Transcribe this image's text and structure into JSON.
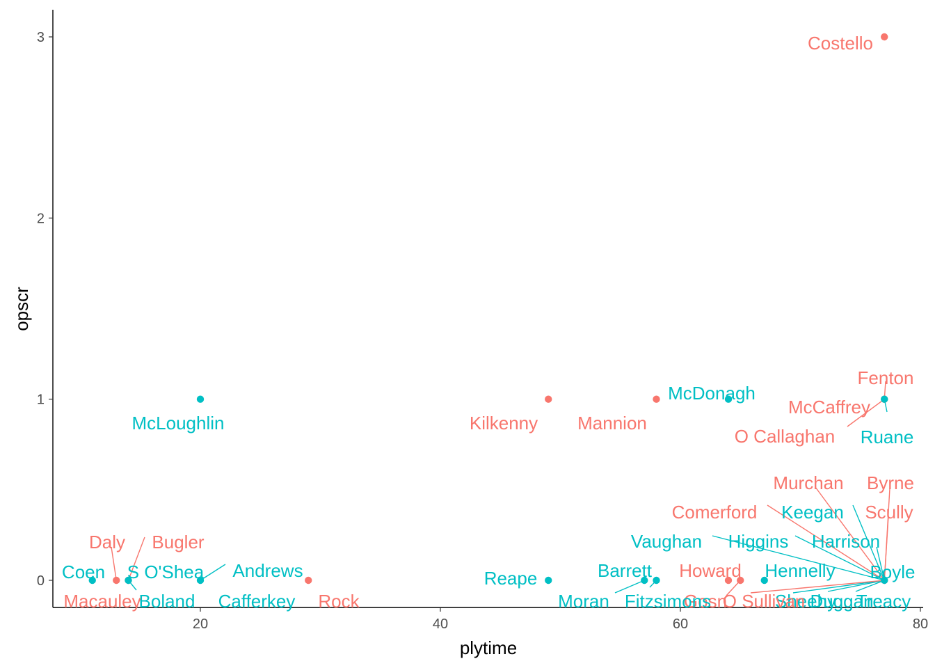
{
  "chart_data": {
    "type": "scatter",
    "xlabel": "plytime",
    "ylabel": "opscr",
    "xlim": [
      8,
      80
    ],
    "ylim": [
      -0.15,
      3.15
    ],
    "x_ticks": [
      20,
      40,
      60,
      80
    ],
    "y_ticks": [
      0,
      1,
      2,
      3
    ],
    "grid": false,
    "legend": "none",
    "colors": {
      "red": "#F8766D",
      "teal": "#00BFC4"
    },
    "points": [
      {
        "name": "Costello",
        "x": 77,
        "y": 3,
        "group": "red"
      },
      {
        "name": "Fenton",
        "x": 77,
        "y": 1,
        "group": "red"
      },
      {
        "name": "McCaffrey",
        "x": 77,
        "y": 1,
        "group": "red"
      },
      {
        "name": "O Callaghan",
        "x": 77,
        "y": 1,
        "group": "red"
      },
      {
        "name": "Ruane",
        "x": 77,
        "y": 1,
        "group": "teal"
      },
      {
        "name": "McDonagh",
        "x": 64,
        "y": 1,
        "group": "teal"
      },
      {
        "name": "Mannion",
        "x": 58,
        "y": 1,
        "group": "red"
      },
      {
        "name": "Kilkenny",
        "x": 49,
        "y": 1,
        "group": "red"
      },
      {
        "name": "McLoughlin",
        "x": 20,
        "y": 1,
        "group": "teal"
      },
      {
        "name": "Murchan",
        "x": 77,
        "y": 0,
        "group": "red"
      },
      {
        "name": "Byrne",
        "x": 77,
        "y": 0,
        "group": "red"
      },
      {
        "name": "Comerford",
        "x": 77,
        "y": 0,
        "group": "red"
      },
      {
        "name": "Keegan",
        "x": 77,
        "y": 0,
        "group": "teal"
      },
      {
        "name": "Scully",
        "x": 77,
        "y": 0,
        "group": "red"
      },
      {
        "name": "Vaughan",
        "x": 77,
        "y": 0,
        "group": "teal"
      },
      {
        "name": "Higgins",
        "x": 77,
        "y": 0,
        "group": "teal"
      },
      {
        "name": "Harrison",
        "x": 77,
        "y": 0,
        "group": "teal"
      },
      {
        "name": "Boyle",
        "x": 77,
        "y": 0,
        "group": "teal"
      },
      {
        "name": "Treacy",
        "x": 77,
        "y": 0,
        "group": "teal"
      },
      {
        "name": "Duggan",
        "x": 77,
        "y": 0,
        "group": "teal"
      },
      {
        "name": "Sheehy",
        "x": 77,
        "y": 0,
        "group": "teal"
      },
      {
        "name": "O Sullivan",
        "x": 77,
        "y": 0,
        "group": "red"
      },
      {
        "name": "Hennelly",
        "x": 67,
        "y": 0,
        "group": "teal"
      },
      {
        "name": "Howard",
        "x": 64,
        "y": 0,
        "group": "red"
      },
      {
        "name": "Gosn",
        "x": 65,
        "y": 0,
        "group": "red"
      },
      {
        "name": "Barrett",
        "x": 57,
        "y": 0,
        "group": "teal"
      },
      {
        "name": "Fitzsimons",
        "x": 58,
        "y": 0,
        "group": "teal"
      },
      {
        "name": "Moran",
        "x": 57,
        "y": 0,
        "group": "teal"
      },
      {
        "name": "Reape",
        "x": 49,
        "y": 0,
        "group": "teal"
      },
      {
        "name": "Rock",
        "x": 29,
        "y": 0,
        "group": "red"
      },
      {
        "name": "Andrews",
        "x": 20,
        "y": 0,
        "group": "teal"
      },
      {
        "name": "Cafferkey",
        "x": 20,
        "y": 0,
        "group": "teal"
      },
      {
        "name": "Daly",
        "x": 13,
        "y": 0,
        "group": "red"
      },
      {
        "name": "Bugler",
        "x": 14,
        "y": 0,
        "group": "red"
      },
      {
        "name": "S O'Shea",
        "x": 14,
        "y": 0,
        "group": "teal"
      },
      {
        "name": "Boland",
        "x": 14,
        "y": 0,
        "group": "teal"
      },
      {
        "name": "Coen",
        "x": 11,
        "y": 0,
        "group": "teal"
      },
      {
        "name": "Macauley",
        "x": 13,
        "y": 0,
        "group": "red"
      }
    ]
  }
}
